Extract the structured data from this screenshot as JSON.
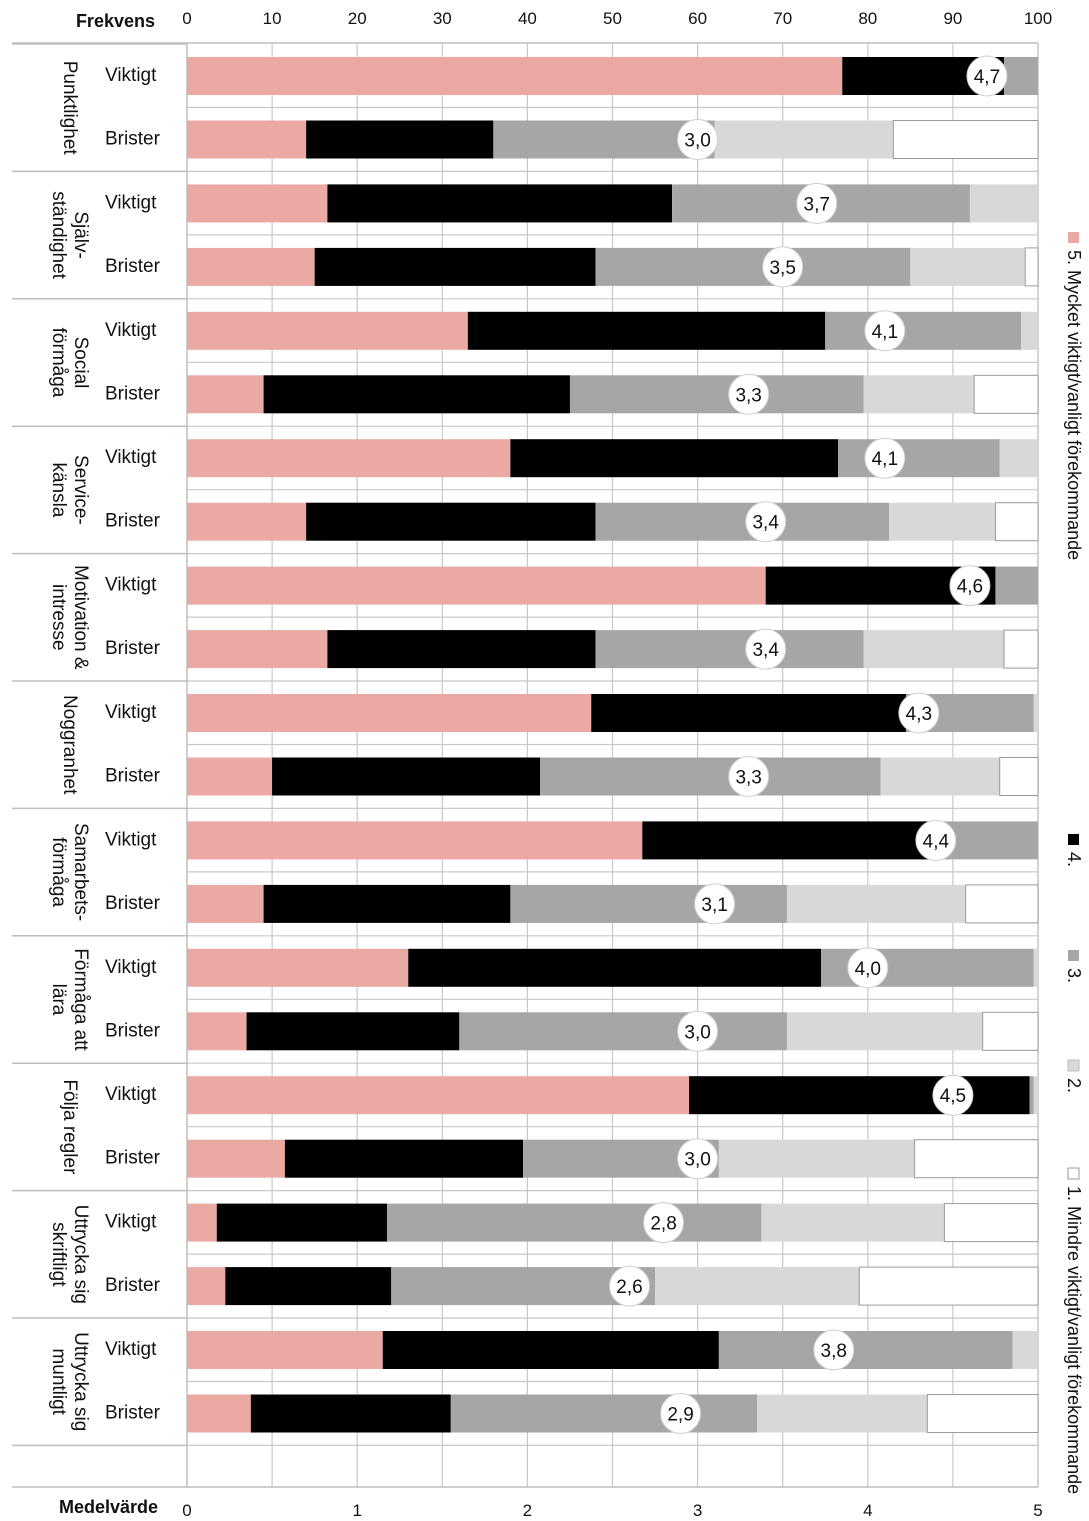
{
  "chart_data": {
    "type": "bar",
    "orientation": "horizontal",
    "stacked": true,
    "top_axis": {
      "label": "Frekvens",
      "range": [
        0,
        100
      ],
      "ticks": [
        0,
        10,
        20,
        30,
        40,
        50,
        60,
        70,
        80,
        90,
        100
      ]
    },
    "bottom_axis": {
      "label": "Medelvärde",
      "range": [
        0,
        5
      ],
      "ticks": [
        0,
        1,
        2,
        3,
        4,
        5
      ]
    },
    "grid": true,
    "legend_position": "right",
    "legend": [
      {
        "label": "5. Mycket viktigt/vanligt förekommande",
        "color": "#eba9a4"
      },
      {
        "label": "4.",
        "color": "#000000"
      },
      {
        "label": "3.",
        "color": "#a6a6a8"
      },
      {
        "label": "2.",
        "color": "#d8d8d9"
      },
      {
        "label": "1. Mindre viktigt/vanligt förekommande",
        "color": "#ffffff"
      }
    ],
    "groups": [
      {
        "label_lines": [
          "Punktlighet"
        ],
        "rows": [
          {
            "label": "Viktigt",
            "values": [
              77,
              19,
              4,
              0,
              0
            ],
            "mean": "4,7",
            "mean_value": 4.7
          },
          {
            "label": "Brister",
            "values": [
              14,
              22,
              26,
              21,
              17
            ],
            "mean": "3,0",
            "mean_value": 3.0
          }
        ]
      },
      {
        "label_lines": [
          "Själv-",
          "ständighet"
        ],
        "rows": [
          {
            "label": "Viktigt",
            "values": [
              16.5,
              40.5,
              35,
              8,
              0
            ],
            "mean": "3,7",
            "mean_value": 3.7
          },
          {
            "label": "Brister",
            "values": [
              15,
              33,
              37,
              13.5,
              1.5
            ],
            "mean": "3,5",
            "mean_value": 3.5
          }
        ]
      },
      {
        "label_lines": [
          "Social",
          "förmåga"
        ],
        "rows": [
          {
            "label": "Viktigt",
            "values": [
              33,
              42,
              23,
              2,
              0
            ],
            "mean": "4,1",
            "mean_value": 4.1
          },
          {
            "label": "Brister",
            "values": [
              9,
              36,
              34.5,
              13,
              7.5
            ],
            "mean": "3,3",
            "mean_value": 3.3
          }
        ]
      },
      {
        "label_lines": [
          "Service-",
          "känsla"
        ],
        "rows": [
          {
            "label": "Viktigt",
            "values": [
              38,
              38.5,
              19,
              4.5,
              0
            ],
            "mean": "4,1",
            "mean_value": 4.1
          },
          {
            "label": "Brister",
            "values": [
              14,
              34,
              34.5,
              12.5,
              5
            ],
            "mean": "3,4",
            "mean_value": 3.4
          }
        ]
      },
      {
        "label_lines": [
          "Motivation &",
          "intresse"
        ],
        "rows": [
          {
            "label": "Viktigt",
            "values": [
              68,
              27,
              5,
              0,
              0
            ],
            "mean": "4,6",
            "mean_value": 4.6
          },
          {
            "label": "Brister",
            "values": [
              16.5,
              31.5,
              31.5,
              16.5,
              4
            ],
            "mean": "3,4",
            "mean_value": 3.4
          }
        ]
      },
      {
        "label_lines": [
          "Noggranhet"
        ],
        "rows": [
          {
            "label": "Viktigt",
            "values": [
              47.5,
              37,
              15,
              0.5,
              0
            ],
            "mean": "4,3",
            "mean_value": 4.3
          },
          {
            "label": "Brister",
            "values": [
              10,
              31.5,
              40,
              14,
              4.5
            ],
            "mean": "3,3",
            "mean_value": 3.3
          }
        ]
      },
      {
        "label_lines": [
          "Samarbets-",
          "förmåga"
        ],
        "rows": [
          {
            "label": "Viktigt",
            "values": [
              53.5,
              34,
              12.5,
              0,
              0
            ],
            "mean": "4,4",
            "mean_value": 4.4
          },
          {
            "label": "Brister",
            "values": [
              9,
              29,
              32.5,
              21,
              8.5
            ],
            "mean": "3,1",
            "mean_value": 3.1
          }
        ]
      },
      {
        "label_lines": [
          "Förmåga att",
          "lära"
        ],
        "rows": [
          {
            "label": "Viktigt",
            "values": [
              26,
              48.5,
              25,
              0.5,
              0
            ],
            "mean": "4,0",
            "mean_value": 4.0
          },
          {
            "label": "Brister",
            "values": [
              7,
              25,
              38.5,
              23,
              6.5
            ],
            "mean": "3,0",
            "mean_value": 3.0
          }
        ]
      },
      {
        "label_lines": [
          "Följa regler"
        ],
        "rows": [
          {
            "label": "Viktigt",
            "values": [
              59,
              40,
              0.5,
              0.5,
              0
            ],
            "mean": "4,5",
            "mean_value": 4.5
          },
          {
            "label": "Brister",
            "values": [
              11.5,
              28,
              23,
              23,
              14.5
            ],
            "mean": "3,0",
            "mean_value": 3.0
          }
        ]
      },
      {
        "label_lines": [
          "Uttrycka sig",
          "skriftligt"
        ],
        "rows": [
          {
            "label": "Viktigt",
            "values": [
              3.5,
              20,
              44,
              21.5,
              11
            ],
            "mean": "2,8",
            "mean_value": 2.8
          },
          {
            "label": "Brister",
            "values": [
              4.5,
              19.5,
              31,
              24,
              21
            ],
            "mean": "2,6",
            "mean_value": 2.6
          }
        ]
      },
      {
        "label_lines": [
          "Uttrycka sig",
          "muntligt"
        ],
        "rows": [
          {
            "label": "Viktigt",
            "values": [
              23,
              39.5,
              34.5,
              3,
              0
            ],
            "mean": "3,8",
            "mean_value": 3.8
          },
          {
            "label": "Brister",
            "values": [
              7.5,
              23.5,
              36,
              20,
              13
            ],
            "mean": "2,9",
            "mean_value": 2.9
          }
        ]
      }
    ]
  }
}
